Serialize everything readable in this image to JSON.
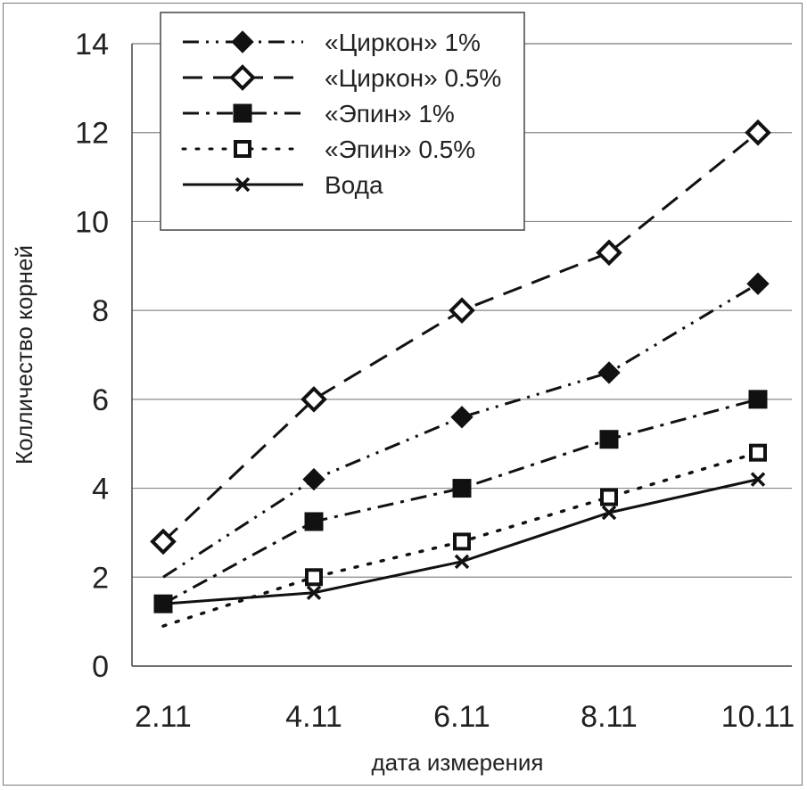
{
  "chart_data": {
    "type": "line",
    "title": "",
    "xlabel": "дата измерения",
    "ylabel": "Колличество корней",
    "categories": [
      "2.11",
      "4.11",
      "6.11",
      "8.11",
      "10.11"
    ],
    "ylim": [
      0,
      14
    ],
    "yticks": [
      0,
      2,
      4,
      6,
      8,
      10,
      12,
      14
    ],
    "ytick_labels": [
      "0",
      "2",
      "4",
      "6",
      "8",
      "10",
      "12",
      "14"
    ],
    "grid": true,
    "legend_position": "top-left",
    "series": [
      {
        "name": "«Циркон» 1%",
        "marker": "diamond-filled",
        "dash": "dash-dot-dot",
        "values": [
          2.0,
          4.2,
          5.6,
          6.6,
          8.6
        ],
        "hide_first_marker": true
      },
      {
        "name": "«Циркон» 0.5%",
        "marker": "diamond-open",
        "dash": "dash",
        "values": [
          2.8,
          6.0,
          8.0,
          9.3,
          12.0
        ]
      },
      {
        "name": "«Эпин» 1%",
        "marker": "square-filled",
        "dash": "dash-dot",
        "values": [
          1.4,
          3.25,
          4.0,
          5.1,
          6.0
        ]
      },
      {
        "name": "«Эпин» 0.5%",
        "marker": "square-open",
        "dash": "dot",
        "values": [
          0.9,
          2.0,
          2.8,
          3.8,
          4.8
        ],
        "hide_first_marker": true
      },
      {
        "name": "Вода",
        "marker": "x",
        "dash": "solid",
        "values": [
          1.4,
          1.65,
          2.35,
          3.45,
          4.2
        ]
      }
    ]
  }
}
